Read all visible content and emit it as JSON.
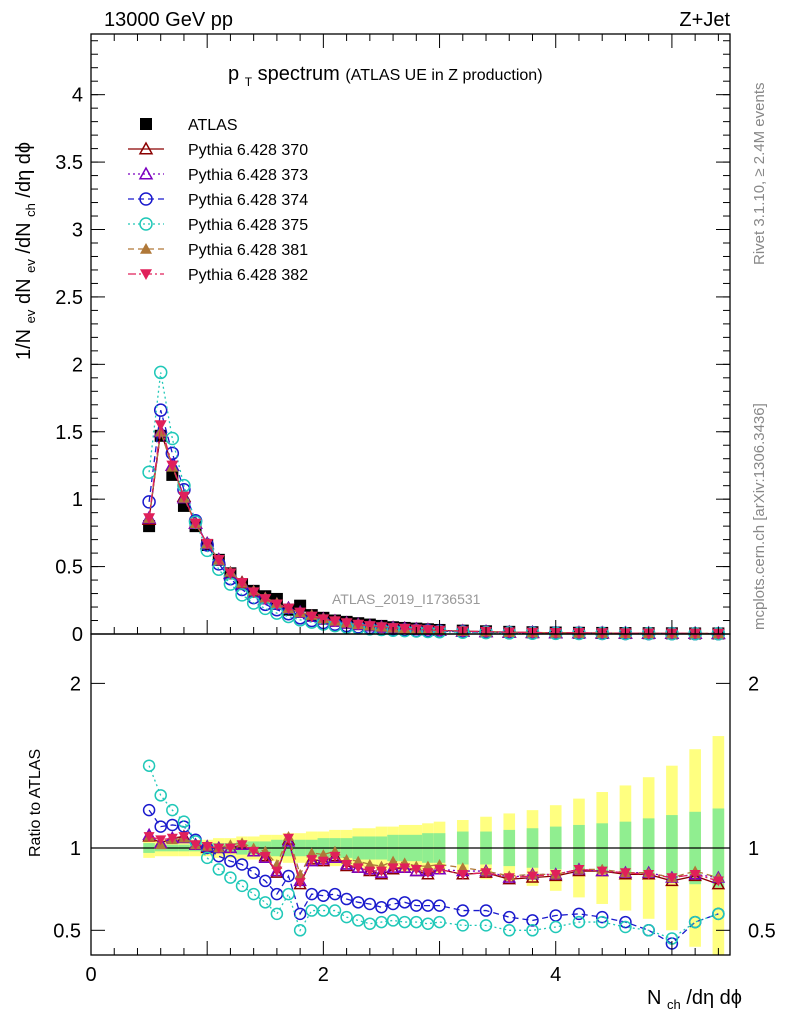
{
  "header": {
    "left": "13000 GeV pp",
    "right": "Z+Jet"
  },
  "plot_title": {
    "main": "p",
    "sub": "T",
    "rest": " spectrum",
    "paren": "(ATLAS UE in Z production)"
  },
  "side_labels": {
    "rivet": "Rivet 3.1.10, ≥ 2.4M events",
    "mcplots": "mcplots.cern.ch [arXiv:1306.3436]"
  },
  "watermark": "ATLAS_2019_I1736531",
  "axes": {
    "x_label": "N",
    "x_label_sub": "ch",
    "x_label_rest": "/dη dϕ",
    "y_label_top": "1/N",
    "y_label_top_sub1": "ev",
    "y_label_top_mid": " dN",
    "y_label_top_sub2": "ev",
    "y_label_top_mid2": "/dN",
    "y_label_top_sub3": "ch",
    "y_label_top_end": "/dη dϕ",
    "y_label_bottom": "Ratio to ATLAS"
  },
  "chart_data": [
    {
      "type": "scatter",
      "panel": "main",
      "title": "pT spectrum (ATLAS UE in Z production)",
      "xlim": [
        0,
        5.5
      ],
      "ylim": [
        0,
        4.45
      ],
      "x_ticks": [],
      "y_ticks": [
        "0",
        "0.5",
        "1",
        "1.5",
        "2",
        "2.5",
        "3",
        "3.5",
        "4"
      ],
      "x": [
        0.5,
        0.6,
        0.7,
        0.8,
        0.9,
        1.0,
        1.1,
        1.2,
        1.3,
        1.4,
        1.5,
        1.6,
        1.7,
        1.8,
        1.9,
        2.0,
        2.1,
        2.2,
        2.3,
        2.4,
        2.5,
        2.6,
        2.7,
        2.8,
        2.9,
        3.0,
        3.2,
        3.4,
        3.6,
        3.8,
        4.0,
        4.2,
        4.4,
        4.6,
        4.8,
        5.0,
        5.2,
        5.4
      ],
      "series": [
        {
          "name": "ATLAS",
          "color": "#000000",
          "marker": "square",
          "values": [
            0.8,
            1.47,
            1.18,
            0.95,
            0.8,
            0.66,
            0.55,
            0.45,
            0.37,
            0.32,
            0.28,
            0.26,
            0.18,
            0.21,
            0.14,
            0.12,
            0.1,
            0.09,
            0.08,
            0.07,
            0.06,
            0.05,
            0.045,
            0.04,
            0.035,
            0.03,
            0.025,
            0.02,
            0.016,
            0.013,
            0.011,
            0.009,
            0.008,
            0.007,
            0.006,
            0.005,
            0.004,
            0.004
          ]
        },
        {
          "name": "Pythia 6.428 370",
          "color": "#8b0000",
          "marker": "triangle-open",
          "line": "solid",
          "values": [
            0.85,
            1.5,
            1.25,
            1.02,
            0.82,
            0.67,
            0.55,
            0.45,
            0.38,
            0.31,
            0.26,
            0.22,
            0.19,
            0.16,
            0.13,
            0.11,
            0.095,
            0.08,
            0.07,
            0.06,
            0.05,
            0.045,
            0.04,
            0.035,
            0.03,
            0.026,
            0.021,
            0.017,
            0.013,
            0.011,
            0.009,
            0.008,
            0.007,
            0.006,
            0.005,
            0.004,
            0.004,
            0.003
          ]
        },
        {
          "name": "Pythia 6.428 373",
          "color": "#7b00c0",
          "marker": "triangle-open",
          "line": "dotted",
          "values": [
            0.86,
            1.5,
            1.25,
            1.01,
            0.82,
            0.67,
            0.55,
            0.45,
            0.37,
            0.31,
            0.26,
            0.22,
            0.19,
            0.16,
            0.13,
            0.11,
            0.094,
            0.08,
            0.07,
            0.06,
            0.05,
            0.045,
            0.04,
            0.035,
            0.03,
            0.026,
            0.021,
            0.017,
            0.013,
            0.011,
            0.009,
            0.008,
            0.007,
            0.006,
            0.005,
            0.004,
            0.004,
            0.003
          ]
        },
        {
          "name": "Pythia 6.428 374",
          "color": "#1a1acd",
          "marker": "circle-open",
          "line": "dashed",
          "values": [
            0.98,
            1.66,
            1.34,
            1.07,
            0.84,
            0.66,
            0.52,
            0.41,
            0.33,
            0.27,
            0.22,
            0.18,
            0.15,
            0.12,
            0.1,
            0.085,
            0.072,
            0.062,
            0.053,
            0.046,
            0.04,
            0.035,
            0.031,
            0.027,
            0.024,
            0.021,
            0.017,
            0.013,
            0.01,
            0.008,
            0.007,
            0.006,
            0.005,
            0.004,
            0.003,
            0.003,
            0.002,
            0.002
          ]
        },
        {
          "name": "Pythia 6.428 375",
          "color": "#20c8b8",
          "marker": "circle-open",
          "line": "dotted",
          "values": [
            1.2,
            1.94,
            1.45,
            1.1,
            0.83,
            0.62,
            0.48,
            0.37,
            0.29,
            0.23,
            0.19,
            0.155,
            0.13,
            0.105,
            0.088,
            0.074,
            0.062,
            0.052,
            0.045,
            0.038,
            0.033,
            0.028,
            0.025,
            0.022,
            0.019,
            0.017,
            0.013,
            0.01,
            0.008,
            0.006,
            0.005,
            0.004,
            0.004,
            0.003,
            0.003,
            0.002,
            0.002,
            0.002
          ]
        },
        {
          "name": "Pythia 6.428 381",
          "color": "#b07838",
          "marker": "triangle-filled",
          "line": "dashed",
          "values": [
            0.86,
            1.5,
            1.24,
            1.01,
            0.82,
            0.67,
            0.55,
            0.46,
            0.38,
            0.32,
            0.27,
            0.23,
            0.19,
            0.16,
            0.14,
            0.115,
            0.098,
            0.083,
            0.072,
            0.062,
            0.053,
            0.046,
            0.04,
            0.035,
            0.031,
            0.027,
            0.022,
            0.017,
            0.014,
            0.011,
            0.009,
            0.008,
            0.007,
            0.006,
            0.005,
            0.004,
            0.004,
            0.003
          ]
        },
        {
          "name": "Pythia 6.428 382",
          "color": "#e0205a",
          "marker": "triangle-down-filled",
          "line": "dashdot",
          "values": [
            0.86,
            1.55,
            1.25,
            1.02,
            0.82,
            0.67,
            0.55,
            0.45,
            0.38,
            0.31,
            0.26,
            0.22,
            0.19,
            0.16,
            0.13,
            0.11,
            0.095,
            0.081,
            0.07,
            0.06,
            0.052,
            0.045,
            0.04,
            0.035,
            0.03,
            0.026,
            0.021,
            0.017,
            0.013,
            0.011,
            0.009,
            0.008,
            0.007,
            0.006,
            0.005,
            0.004,
            0.004,
            0.003
          ]
        }
      ]
    },
    {
      "type": "scatter",
      "panel": "ratio",
      "xlabel": "Nch/dη dϕ",
      "ylabel": "Ratio to ATLAS",
      "xlim": [
        0,
        5.5
      ],
      "ylim": [
        0.35,
        2.3
      ],
      "x_ticks": [
        "0",
        "2",
        "4"
      ],
      "y_ticks": [
        "0.5",
        "1",
        "2"
      ],
      "x": [
        0.5,
        0.6,
        0.7,
        0.8,
        0.9,
        1.0,
        1.1,
        1.2,
        1.3,
        1.4,
        1.5,
        1.6,
        1.7,
        1.8,
        1.9,
        2.0,
        2.1,
        2.2,
        2.3,
        2.4,
        2.5,
        2.6,
        2.7,
        2.8,
        2.9,
        3.0,
        3.2,
        3.4,
        3.6,
        3.8,
        4.0,
        4.2,
        4.4,
        4.6,
        4.8,
        5.0,
        5.2,
        5.4
      ],
      "bands": {
        "yellow_half_width": [
          0.06,
          0.05,
          0.05,
          0.05,
          0.05,
          0.05,
          0.06,
          0.06,
          0.07,
          0.07,
          0.08,
          0.08,
          0.09,
          0.09,
          0.1,
          0.1,
          0.11,
          0.11,
          0.12,
          0.12,
          0.13,
          0.13,
          0.14,
          0.14,
          0.15,
          0.16,
          0.17,
          0.19,
          0.21,
          0.23,
          0.26,
          0.3,
          0.34,
          0.38,
          0.43,
          0.5,
          0.6,
          0.68
        ],
        "green_half_width": [
          0.03,
          0.02,
          0.02,
          0.02,
          0.02,
          0.03,
          0.03,
          0.03,
          0.04,
          0.04,
          0.04,
          0.05,
          0.05,
          0.05,
          0.05,
          0.06,
          0.06,
          0.06,
          0.07,
          0.07,
          0.07,
          0.08,
          0.08,
          0.08,
          0.09,
          0.09,
          0.1,
          0.1,
          0.11,
          0.12,
          0.13,
          0.14,
          0.15,
          0.16,
          0.18,
          0.2,
          0.22,
          0.24
        ]
      },
      "series": [
        {
          "name": "Pythia 6.428 370",
          "values": [
            1.07,
            1.03,
            1.06,
            1.07,
            1.02,
            1.0,
            1.0,
            1.0,
            1.02,
            0.98,
            0.95,
            0.85,
            1.05,
            0.78,
            0.93,
            0.92,
            0.95,
            0.89,
            0.88,
            0.86,
            0.84,
            0.87,
            0.88,
            0.86,
            0.84,
            0.87,
            0.84,
            0.85,
            0.81,
            0.82,
            0.83,
            0.86,
            0.86,
            0.84,
            0.84,
            0.8,
            0.83,
            0.78
          ]
        },
        {
          "name": "Pythia 6.428 373",
          "values": [
            1.08,
            1.03,
            1.06,
            1.06,
            1.02,
            1.01,
            1.0,
            1.0,
            1.02,
            0.98,
            0.94,
            0.86,
            1.04,
            0.8,
            0.92,
            0.93,
            0.94,
            0.9,
            0.88,
            0.87,
            0.85,
            0.88,
            0.88,
            0.86,
            0.86,
            0.87,
            0.86,
            0.86,
            0.82,
            0.84,
            0.84,
            0.87,
            0.86,
            0.85,
            0.85,
            0.82,
            0.84,
            0.82
          ]
        },
        {
          "name": "Pythia 6.428 374",
          "values": [
            1.23,
            1.13,
            1.14,
            1.13,
            1.05,
            1.0,
            0.95,
            0.92,
            0.9,
            0.85,
            0.8,
            0.72,
            0.83,
            0.6,
            0.72,
            0.71,
            0.72,
            0.69,
            0.67,
            0.66,
            0.64,
            0.66,
            0.67,
            0.65,
            0.65,
            0.65,
            0.62,
            0.62,
            0.58,
            0.56,
            0.59,
            0.6,
            0.58,
            0.55,
            0.5,
            0.42,
            0.55,
            0.6
          ]
        },
        {
          "name": "Pythia 6.428 375",
          "values": [
            1.5,
            1.32,
            1.23,
            1.16,
            1.04,
            0.94,
            0.87,
            0.82,
            0.77,
            0.72,
            0.67,
            0.6,
            0.72,
            0.5,
            0.62,
            0.62,
            0.62,
            0.58,
            0.56,
            0.54,
            0.55,
            0.56,
            0.55,
            0.55,
            0.54,
            0.55,
            0.53,
            0.53,
            0.5,
            0.5,
            0.52,
            0.55,
            0.55,
            0.52,
            0.5,
            0.45,
            0.55,
            0.6
          ]
        },
        {
          "name": "Pythia 6.428 381",
          "values": [
            1.07,
            1.02,
            1.05,
            1.06,
            1.02,
            1.01,
            1.0,
            1.02,
            1.03,
            1.0,
            0.98,
            0.9,
            1.07,
            0.84,
            0.97,
            0.96,
            0.98,
            0.93,
            0.92,
            0.9,
            0.89,
            0.92,
            0.91,
            0.89,
            0.89,
            0.9,
            0.88,
            0.86,
            0.83,
            0.84,
            0.84,
            0.87,
            0.87,
            0.85,
            0.85,
            0.82,
            0.86,
            0.82
          ]
        },
        {
          "name": "Pythia 6.428 382",
          "values": [
            1.07,
            1.05,
            1.06,
            1.07,
            1.02,
            1.01,
            1.0,
            1.0,
            1.02,
            0.98,
            0.95,
            0.86,
            1.06,
            0.79,
            0.93,
            0.92,
            0.95,
            0.9,
            0.88,
            0.86,
            0.86,
            0.88,
            0.88,
            0.87,
            0.85,
            0.87,
            0.84,
            0.85,
            0.82,
            0.83,
            0.84,
            0.87,
            0.86,
            0.85,
            0.84,
            0.82,
            0.84,
            0.8
          ]
        }
      ]
    }
  ]
}
